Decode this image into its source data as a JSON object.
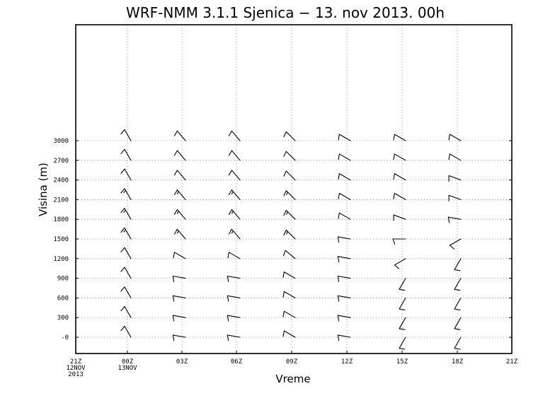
{
  "chart_data": {
    "type": "wind-barb",
    "title": "WRF-NMM 3.1.1 Sjenica − 13. nov 2013. 00h",
    "xlabel": "Vreme",
    "ylabel": "Visina (m)",
    "x_ticks": [
      {
        "label": "21Z",
        "sub1": "12NOV",
        "sub2": "2013"
      },
      {
        "label": "00Z",
        "sub1": "13NOV",
        "sub2": ""
      },
      {
        "label": "03Z",
        "sub1": "",
        "sub2": ""
      },
      {
        "label": "06Z",
        "sub1": "",
        "sub2": ""
      },
      {
        "label": "09Z",
        "sub1": "",
        "sub2": ""
      },
      {
        "label": "12Z",
        "sub1": "",
        "sub2": ""
      },
      {
        "label": "15Z",
        "sub1": "",
        "sub2": ""
      },
      {
        "label": "18Z",
        "sub1": "",
        "sub2": ""
      },
      {
        "label": "21Z",
        "sub1": "",
        "sub2": ""
      }
    ],
    "y_ticks": [
      0,
      300,
      600,
      900,
      1200,
      1500,
      1800,
      2100,
      2400,
      2700,
      3000
    ],
    "y_tick_labels": [
      "-0",
      "300",
      "600",
      "900",
      "1200",
      "1500",
      "1800",
      "2100",
      "2400",
      "2700",
      "3000"
    ],
    "ylim": [
      -200,
      3200
    ],
    "grid": true,
    "barb_times": [
      "00Z",
      "03Z",
      "06Z",
      "09Z",
      "12Z",
      "15Z",
      "18Z"
    ],
    "barb_heights": [
      0,
      300,
      600,
      900,
      1200,
      1500,
      1800,
      2100,
      2400,
      2700,
      3000
    ],
    "wind_from_direction_deg": [
      [
        330,
        330,
        330,
        330,
        330,
        330,
        330,
        330,
        330,
        330,
        330
      ],
      [
        280,
        280,
        280,
        280,
        300,
        320,
        320,
        320,
        320,
        320,
        320
      ],
      [
        280,
        280,
        280,
        280,
        300,
        320,
        320,
        320,
        320,
        320,
        320
      ],
      [
        300,
        300,
        300,
        300,
        310,
        315,
        315,
        315,
        315,
        315,
        315
      ],
      [
        280,
        280,
        280,
        280,
        280,
        280,
        300,
        300,
        300,
        300,
        300
      ],
      [
        210,
        210,
        210,
        210,
        240,
        270,
        290,
        300,
        300,
        300,
        300
      ],
      [
        210,
        210,
        210,
        210,
        210,
        240,
        280,
        290,
        290,
        300,
        300
      ]
    ],
    "wind_speed_kt": [
      [
        10,
        10,
        10,
        10,
        10,
        15,
        15,
        15,
        10,
        10,
        10
      ],
      [
        10,
        10,
        10,
        10,
        10,
        15,
        15,
        15,
        10,
        10,
        10
      ],
      [
        10,
        10,
        10,
        10,
        10,
        15,
        15,
        15,
        10,
        10,
        10
      ],
      [
        10,
        10,
        10,
        10,
        10,
        15,
        15,
        15,
        10,
        10,
        10
      ],
      [
        10,
        10,
        10,
        10,
        10,
        10,
        10,
        10,
        10,
        10,
        10
      ],
      [
        10,
        10,
        10,
        10,
        10,
        10,
        10,
        10,
        10,
        10,
        10
      ],
      [
        10,
        10,
        10,
        10,
        10,
        10,
        10,
        10,
        10,
        10,
        10
      ]
    ]
  }
}
